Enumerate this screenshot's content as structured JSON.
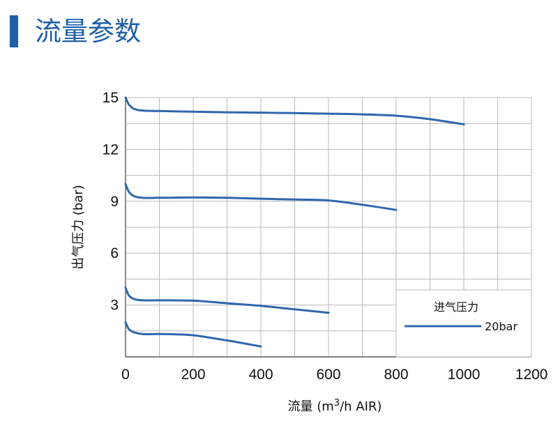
{
  "page": {
    "title": "流量参数"
  },
  "chart_data": {
    "type": "line",
    "title": "",
    "xlabel_prefix": "流量 (m",
    "xlabel_sup": "3",
    "xlabel_suffix": "/h AIR)",
    "ylabel": "出气压力 (bar)",
    "xlim": [
      0,
      1200
    ],
    "ylim": [
      0,
      15
    ],
    "xticks": [
      0,
      200,
      400,
      600,
      800,
      1000,
      1200
    ],
    "yticks": [
      3,
      6,
      9,
      12,
      15
    ],
    "grid": true,
    "legend": {
      "position": "bottom-right",
      "title": "进气压力",
      "entries": [
        "20bar"
      ]
    },
    "line_color": "#2e66ad",
    "series": [
      {
        "x": [
          0,
          10,
          25,
          50,
          100,
          200,
          300,
          400,
          500,
          600,
          700,
          800,
          900,
          1000
        ],
        "y": [
          15.0,
          14.6,
          14.35,
          14.25,
          14.22,
          14.18,
          14.15,
          14.13,
          14.1,
          14.07,
          14.03,
          13.95,
          13.75,
          13.45
        ]
      },
      {
        "x": [
          0,
          10,
          25,
          50,
          100,
          200,
          300,
          400,
          500,
          600,
          700,
          800
        ],
        "y": [
          10.0,
          9.55,
          9.3,
          9.2,
          9.2,
          9.22,
          9.2,
          9.15,
          9.1,
          9.05,
          8.8,
          8.5
        ]
      },
      {
        "x": [
          0,
          10,
          25,
          50,
          100,
          200,
          300,
          400,
          500,
          600
        ],
        "y": [
          4.0,
          3.55,
          3.35,
          3.27,
          3.27,
          3.25,
          3.1,
          2.95,
          2.75,
          2.55
        ]
      },
      {
        "x": [
          0,
          10,
          25,
          50,
          100,
          150,
          200,
          300,
          400
        ],
        "y": [
          2.0,
          1.6,
          1.42,
          1.32,
          1.32,
          1.3,
          1.25,
          0.95,
          0.6
        ]
      }
    ]
  }
}
